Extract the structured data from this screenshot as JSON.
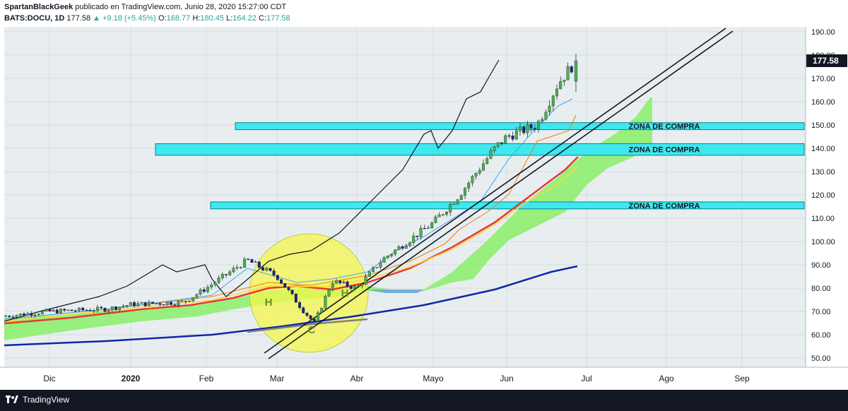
{
  "header": {
    "user": "SpartanBlackGeek",
    "published": "publicado en TradingView.com, Junio 28, 2020 15:27:00 CDT",
    "symbol": "BATS:DOCU, 1D",
    "last": "177.58",
    "change": "▲ +9.18 (+5.45%)",
    "o_label": "O:",
    "o_val": "168.77",
    "h_label": "H:",
    "h_val": "180.45",
    "l_label": "L:",
    "l_val": "164.22",
    "c_label": "C:",
    "c_val": "177.58"
  },
  "footer": {
    "brand": "TradingView"
  },
  "colors": {
    "background": "#e8eef0",
    "zone": "#3ee8ee",
    "up": "#26a69a",
    "candle_up": "#4caf50",
    "candle_down": "#1a237e",
    "ema_red": "#e53935",
    "ema_yellow": "#fdd835",
    "ema_orange": "#f57c00",
    "ma_blue": "#0d28a8",
    "ma_gray": "#808080",
    "cloud": "#90ee70",
    "circle": "#f4f74c"
  },
  "chart_data": {
    "type": "candlestick",
    "symbol": "BATS:DOCU",
    "interval": "1D",
    "ylim": [
      45,
      195
    ],
    "y_ticks": [
      50,
      60,
      70,
      80,
      90,
      100,
      110,
      120,
      130,
      140,
      150,
      160,
      170,
      180,
      190
    ],
    "x_ticks": [
      "Dic",
      "2020",
      "Feb",
      "Mar",
      "Abr",
      "Mayo",
      "Jun",
      "Jul",
      "Ago",
      "Sep"
    ],
    "last_price_label": "177.58",
    "zones": [
      {
        "label": "ZONA DE COMPRA",
        "low": 148,
        "high": 151
      },
      {
        "label": "ZONA DE COMPRA",
        "low": 137,
        "high": 142
      },
      {
        "label": "ZONA DE COMPRA",
        "low": 114,
        "high": 117
      }
    ],
    "pattern_labels": [
      "H",
      "H",
      "C"
    ],
    "ohlc_last": {
      "open": 168.77,
      "high": 180.45,
      "low": 164.22,
      "close": 177.58
    },
    "price_path_approx": [
      [
        "Dic",
        68
      ],
      [
        "2020",
        73
      ],
      [
        "Feb",
        80
      ],
      [
        "Feb 20",
        92
      ],
      [
        "Mar",
        85
      ],
      [
        "Mar 16",
        68
      ],
      [
        "Abr",
        80
      ],
      [
        "Mayo",
        108
      ],
      [
        "Jun",
        145
      ],
      [
        "Jun 26",
        177.58
      ]
    ],
    "comparison_line_approx": [
      [
        "Dic",
        66
      ],
      [
        "2020",
        78
      ],
      [
        "Feb",
        85
      ],
      [
        "Feb 20",
        90
      ],
      [
        "Mar",
        80
      ],
      [
        "Abr",
        102
      ],
      [
        "Mayo",
        140
      ],
      [
        "Jun",
        177
      ]
    ]
  }
}
